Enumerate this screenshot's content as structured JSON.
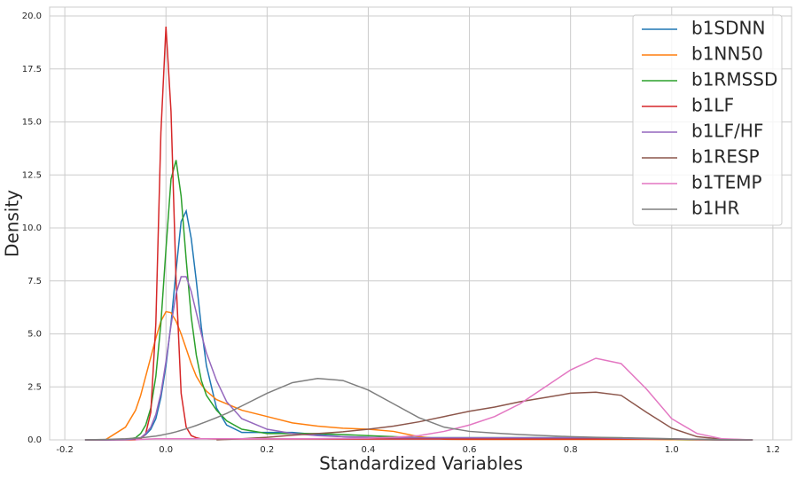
{
  "chart_data": {
    "type": "line",
    "x_label": "Standardized Variables",
    "y_label": "Density",
    "xlim": [
      -0.23,
      1.237
    ],
    "ylim": [
      0,
      20.42
    ],
    "xticks": [
      -0.2,
      {
        "value": 0,
        "label": "0.0"
      },
      0.2,
      0.4,
      0.6,
      0.8,
      {
        "value": 1,
        "label": "1.0"
      },
      1.2
    ],
    "yticks": [
      {
        "value": 0,
        "label": "0.0"
      },
      2.5,
      {
        "value": 5,
        "label": "5.0"
      },
      7.5,
      {
        "value": 10,
        "label": "10.0"
      },
      12.5,
      {
        "value": 15,
        "label": "15.0"
      },
      17.5,
      {
        "value": 20,
        "label": "20.0"
      }
    ],
    "grid": true,
    "legend": "upper right",
    "x": [
      -0.16,
      -0.12,
      -0.08,
      -0.06,
      -0.05,
      -0.04,
      -0.03,
      -0.02,
      -0.01,
      0,
      0.01,
      0.02,
      0.03,
      0.04,
      0.05,
      0.06,
      0.07,
      0.08,
      0.1,
      0.12,
      0.15,
      0.2,
      0.25,
      0.3,
      0.35,
      0.4,
      0.45,
      0.5,
      0.55,
      0.6,
      0.65,
      0.7,
      0.75,
      0.8,
      0.85,
      0.9,
      0.95,
      1.0,
      1.05,
      1.1,
      1.16
    ],
    "series": [
      {
        "name": "b1SDNN",
        "color": "#1f77b4",
        "values": [
          0,
          0,
          0.01,
          0.05,
          0.1,
          0.25,
          0.5,
          1,
          2,
          3.5,
          5.5,
          8,
          10.3,
          10.8,
          9.5,
          7.5,
          5.3,
          3.5,
          1.5,
          0.7,
          0.35,
          0.35,
          0.35,
          0.25,
          0.15,
          0.12,
          0.1,
          0.1,
          0.1,
          0.1,
          0.1,
          0.1,
          0.1,
          0.1,
          0.08,
          0.07,
          0.05,
          0.03,
          0.01,
          0,
          0
        ]
      },
      {
        "name": "b1NN50",
        "color": "#ff7f0e",
        "values": [
          null,
          0,
          0.6,
          1.4,
          2.1,
          3,
          3.9,
          4.8,
          5.6,
          6.05,
          6,
          5.6,
          5,
          4.3,
          3.6,
          3,
          2.6,
          2.3,
          1.9,
          1.7,
          1.4,
          1.1,
          0.8,
          0.65,
          0.55,
          0.5,
          0.4,
          0.15,
          0.03,
          0.02,
          0.02,
          0.02,
          0.02,
          0.02,
          0.02,
          0.02,
          0.02,
          0.01,
          0,
          0,
          0
        ]
      },
      {
        "name": "b1RMSSD",
        "color": "#2ca02c",
        "values": [
          0,
          0,
          0.02,
          0.1,
          0.3,
          0.7,
          1.5,
          3,
          5.5,
          9,
          12.3,
          13.2,
          11.5,
          8.5,
          5.8,
          4,
          2.8,
          2.1,
          1.4,
          0.9,
          0.5,
          0.3,
          0.3,
          0.3,
          0.25,
          0.2,
          0.15,
          0.1,
          0.1,
          0.1,
          0.1,
          0.1,
          0.1,
          0.1,
          0.1,
          0.1,
          0.05,
          0.03,
          0.01,
          0,
          0
        ]
      },
      {
        "name": "b1LF",
        "color": "#d62728",
        "values": [
          0,
          0,
          0,
          0.01,
          0.05,
          0.3,
          1.3,
          5.5,
          14.5,
          19.5,
          15.5,
          7.5,
          2.2,
          0.6,
          0.2,
          0.1,
          0.05,
          0.05,
          0.04,
          0.04,
          0.04,
          0.04,
          0.04,
          0.04,
          0.04,
          0.04,
          0.04,
          0.04,
          0.04,
          0.04,
          0.04,
          0.04,
          0.04,
          0.04,
          0.04,
          0.04,
          0.04,
          0.04,
          0.02,
          0,
          0
        ]
      },
      {
        "name": "b1LF/HF",
        "color": "#9467bd",
        "values": [
          0,
          0,
          0.01,
          0.05,
          0.1,
          0.3,
          0.6,
          1.2,
          2.2,
          3.7,
          5.4,
          6.9,
          7.7,
          7.7,
          7,
          6,
          5,
          4.1,
          2.8,
          1.8,
          1,
          0.5,
          0.3,
          0.2,
          0.15,
          0.12,
          0.1,
          0.1,
          0.1,
          0.1,
          0.1,
          0.1,
          0.1,
          0.1,
          0.1,
          0.08,
          0.06,
          0.05,
          0.02,
          0,
          0
        ]
      },
      {
        "name": "b1RESP",
        "color": "#8c564b",
        "values": [
          null,
          null,
          null,
          null,
          null,
          null,
          null,
          null,
          null,
          null,
          null,
          null,
          null,
          null,
          null,
          null,
          null,
          null,
          0,
          0.02,
          0.05,
          0.12,
          0.22,
          0.3,
          0.38,
          0.5,
          0.65,
          0.85,
          1.1,
          1.35,
          1.55,
          1.8,
          2,
          2.2,
          2.25,
          2.1,
          1.3,
          0.55,
          0.15,
          0.03,
          0
        ]
      },
      {
        "name": "b1TEMP",
        "color": "#e377c2",
        "values": [
          null,
          null,
          null,
          0,
          0.02,
          0.03,
          0.04,
          0.05,
          0.05,
          0.05,
          0.05,
          0.05,
          0.05,
          0.05,
          0.05,
          0.05,
          0.05,
          0.05,
          0.05,
          0.05,
          0.05,
          0.05,
          0.05,
          0.06,
          0.07,
          0.08,
          0.12,
          0.2,
          0.4,
          0.7,
          1.1,
          1.7,
          2.5,
          3.3,
          3.85,
          3.6,
          2.4,
          1,
          0.3,
          0.05,
          0
        ]
      },
      {
        "name": "b1HR",
        "color": "#7f7f7f",
        "values": [
          0,
          0.02,
          0.05,
          0.08,
          0.1,
          0.12,
          0.15,
          0.18,
          0.22,
          0.27,
          0.32,
          0.38,
          0.45,
          0.52,
          0.6,
          0.68,
          0.77,
          0.86,
          1.05,
          1.25,
          1.6,
          2.2,
          2.7,
          2.9,
          2.8,
          2.35,
          1.7,
          1.05,
          0.6,
          0.4,
          0.32,
          0.25,
          0.2,
          0.15,
          0.12,
          0.1,
          0.08,
          0.05,
          0.03,
          0.01,
          0
        ]
      }
    ]
  }
}
